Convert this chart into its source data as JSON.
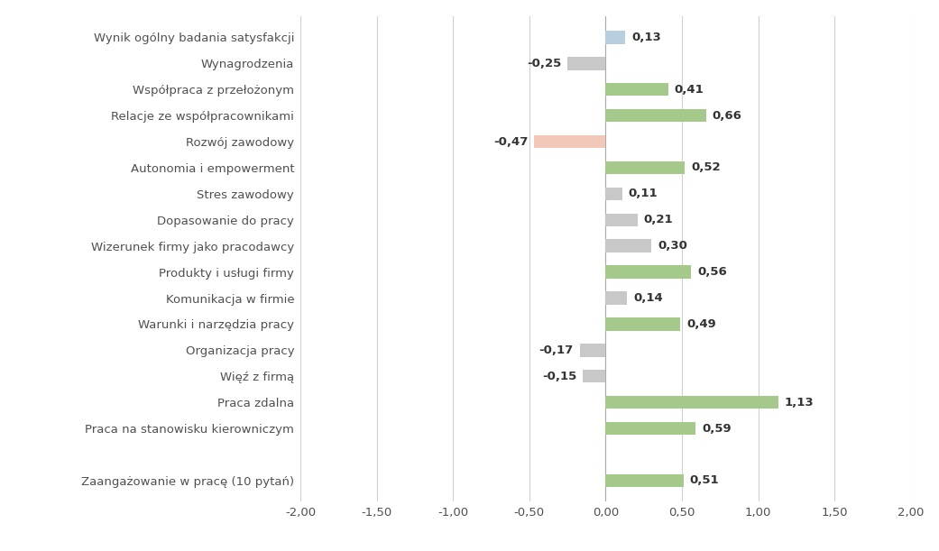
{
  "categories": [
    "Wynik ogólny badania satysfakcji",
    "Wynagrodzenia",
    "Współpraca z przełożonym",
    "Relacje ze współpracownikami",
    "Rozwój zawodowy",
    "Autonomia i empowerment",
    "Stres zawodowy",
    "Dopasowanie do pracy",
    "Wizerunek firmy jako pracodawcy",
    "Produkty i usługi firmy",
    "Komunikacja w firmie",
    "Warunki i narzędzia pracy",
    "Organizacja pracy",
    "Więź z firmą",
    "Praca zdalna",
    "Praca na stanowisku kierowniczym",
    "",
    "Zaangażowanie w pracę (10 pytań)"
  ],
  "values": [
    0.13,
    -0.25,
    0.41,
    0.66,
    -0.47,
    0.52,
    0.11,
    0.21,
    0.3,
    0.56,
    0.14,
    0.49,
    -0.17,
    -0.15,
    1.13,
    0.59,
    0.0,
    0.51
  ],
  "bar_colors": [
    "#b8cfe0",
    "#c8c8c8",
    "#a5c98a",
    "#a5c98a",
    "#f2c8b8",
    "#a5c98a",
    "#c8c8c8",
    "#c8c8c8",
    "#c8c8c8",
    "#a5c98a",
    "#c8c8c8",
    "#a5c98a",
    "#c8c8c8",
    "#c8c8c8",
    "#a5c98a",
    "#a5c98a",
    "#ffffff",
    "#a5c98a"
  ],
  "xlim": [
    -2.0,
    2.0
  ],
  "xticks": [
    -2.0,
    -1.5,
    -1.0,
    -0.5,
    0.0,
    0.5,
    1.0,
    1.5,
    2.0
  ],
  "xtick_labels": [
    "-2,00",
    "-1,50",
    "-1,00",
    "-0,50",
    "0,00",
    "0,50",
    "1,00",
    "1,50",
    "2,00"
  ],
  "background_color": "#ffffff",
  "label_fontsize": 9.5,
  "tick_fontsize": 9.5,
  "value_fontsize": 9.5,
  "bar_height": 0.5
}
